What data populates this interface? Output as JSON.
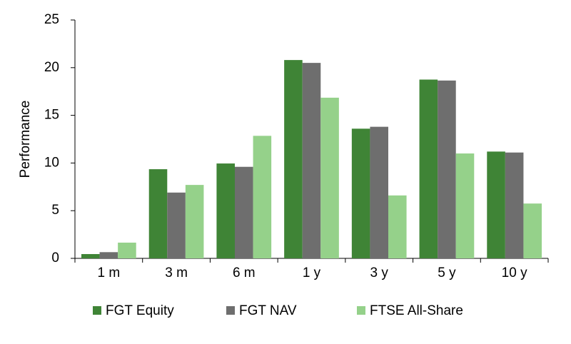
{
  "chart_data": {
    "type": "bar",
    "y_label": "Performance",
    "categories": [
      "1 m",
      "3 m",
      "6 m",
      "1 y",
      "3 y",
      "5 y",
      "10 y"
    ],
    "series": [
      {
        "name": "FGT Equity",
        "color": "#3f8436",
        "values": [
          0.45,
          9.35,
          9.95,
          20.8,
          13.6,
          18.75,
          11.2
        ]
      },
      {
        "name": "FGT NAV",
        "color": "#6e6e6e",
        "values": [
          0.65,
          6.9,
          9.6,
          20.5,
          13.8,
          18.65,
          11.1
        ]
      },
      {
        "name": "FTSE All-Share",
        "color": "#95d18a",
        "values": [
          1.65,
          7.7,
          12.85,
          16.85,
          6.6,
          11.0,
          5.75
        ]
      }
    ],
    "ylim": [
      0,
      25
    ],
    "yticks": [
      0,
      5,
      10,
      15,
      20,
      25
    ],
    "grid": false,
    "legend": "bottom"
  }
}
